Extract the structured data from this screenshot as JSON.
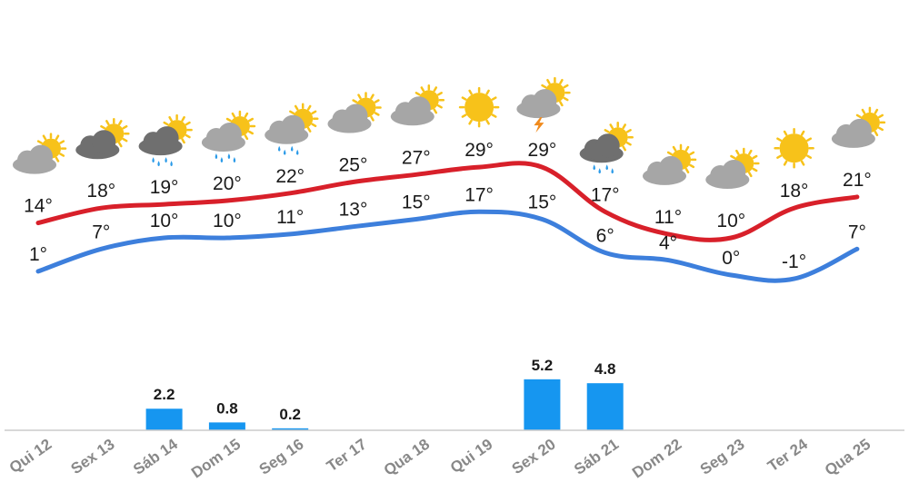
{
  "chart_data": {
    "type": "line",
    "x": [
      "Qui 12",
      "Sex 13",
      "Sáb 14",
      "Dom 15",
      "Seg 16",
      "Ter 17",
      "Qua 18",
      "Qui 19",
      "Sex 20",
      "Sáb 21",
      "Dom 22",
      "Seg 23",
      "Ter 24",
      "Qua 25"
    ],
    "max_labels": [
      "14°",
      "18°",
      "19°",
      "20°",
      "22°",
      "25°",
      "27°",
      "29°",
      "29°",
      "17°",
      "11°",
      "10°",
      "18°",
      "21°"
    ],
    "min_labels": [
      "1°",
      "7°",
      "10°",
      "10°",
      "11°",
      "13°",
      "15°",
      "17°",
      "15°",
      "6°",
      "4°",
      "0°",
      "-1°",
      "7°"
    ],
    "series": [
      {
        "values": [
          14,
          18,
          19,
          20,
          22,
          25,
          27,
          29,
          29,
          17,
          11,
          10,
          18,
          21
        ],
        "color": "#d8202a"
      },
      {
        "values": [
          1,
          7,
          10,
          10,
          11,
          13,
          15,
          17,
          15,
          6,
          4,
          0,
          -1,
          7
        ],
        "color": "#3d7fdc"
      }
    ],
    "precipitation": {
      "values": [
        null,
        null,
        2.2,
        0.8,
        0.2,
        null,
        null,
        null,
        5.2,
        4.8,
        null,
        null,
        null,
        null
      ],
      "labels": [
        "",
        "",
        "2.2",
        "0.8",
        "0.2",
        "",
        "",
        "",
        "5.2",
        "4.8",
        "",
        "",
        "",
        ""
      ],
      "color": "#1696f0"
    },
    "icons": [
      "partly-cloudy-icon",
      "partly-cloudy-dark-icon",
      "rain-cloud-dark-icon",
      "rain-cloud-icon",
      "rain-cloud-icon",
      "partly-cloudy-icon",
      "partly-cloudy-icon",
      "sun-icon",
      "thunderstorm-icon",
      "rain-cloud-dark-icon",
      "partly-cloudy-icon",
      "partly-cloudy-icon",
      "sun-icon",
      "partly-cloudy-icon"
    ],
    "colors": {
      "sun": "#f7c21a",
      "cloud": "#a6a6a6",
      "cloud_dark": "#6f6f6f",
      "rain": "#2a9ae8",
      "bolt": "#f08a1c",
      "axis": "#cccccc",
      "day_label": "#888888"
    }
  }
}
